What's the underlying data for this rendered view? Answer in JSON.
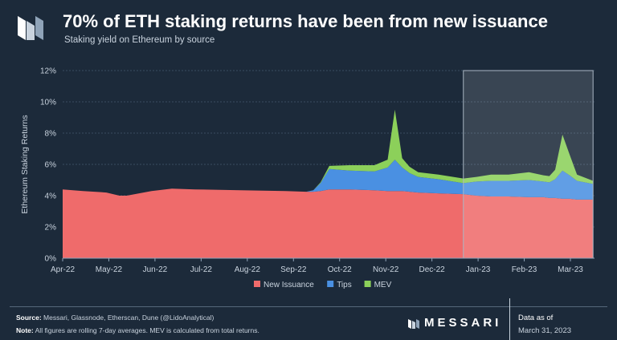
{
  "header": {
    "title": "70% of ETH staking returns have been from new issuance",
    "subtitle": "Staking yield on Ethereum by source"
  },
  "chart_data": {
    "type": "area",
    "stacked": true,
    "title": "70% of ETH staking returns have been from new issuance",
    "subtitle": "Staking yield on Ethereum by source",
    "xlabel": "",
    "ylabel": "Ethereum Staking Returns",
    "ylim": [
      0,
      12
    ],
    "y_ticks": [
      "0%",
      "2%",
      "4%",
      "6%",
      "8%",
      "10%",
      "12%"
    ],
    "x_ticks": [
      "Apr-22",
      "May-22",
      "Jun-22",
      "Jul-22",
      "Aug-22",
      "Sep-22",
      "Oct-22",
      "Nov-22",
      "Dec-22",
      "Jan-23",
      "Feb-23",
      "Mar-23"
    ],
    "grid": true,
    "legend_position": "bottom",
    "highlight_region": [
      "2023-01-01",
      "2023-03-31"
    ],
    "colors": {
      "New Issuance": "#ef6b6b",
      "Tips": "#4a90e2",
      "MEV": "#8cd05a"
    },
    "x": [
      "2022-04-01",
      "2022-04-15",
      "2022-05-01",
      "2022-05-10",
      "2022-05-15",
      "2022-06-01",
      "2022-06-15",
      "2022-07-01",
      "2022-08-01",
      "2022-09-01",
      "2022-09-15",
      "2022-09-20",
      "2022-09-25",
      "2022-10-01",
      "2022-10-15",
      "2022-11-01",
      "2022-11-10",
      "2022-11-15",
      "2022-11-20",
      "2022-11-25",
      "2022-12-01",
      "2022-12-15",
      "2023-01-01",
      "2023-01-10",
      "2023-01-20",
      "2023-02-01",
      "2023-02-15",
      "2023-02-25",
      "2023-03-01",
      "2023-03-05",
      "2023-03-10",
      "2023-03-15",
      "2023-03-20",
      "2023-03-31"
    ],
    "series": [
      {
        "name": "New Issuance",
        "values": [
          4.4,
          4.3,
          4.2,
          4.0,
          4.0,
          4.3,
          4.45,
          4.4,
          4.35,
          4.3,
          4.25,
          4.25,
          4.3,
          4.4,
          4.4,
          4.35,
          4.3,
          4.3,
          4.3,
          4.25,
          4.2,
          4.15,
          4.1,
          4.0,
          3.95,
          3.95,
          3.9,
          3.9,
          3.85,
          3.85,
          3.8,
          3.8,
          3.75,
          3.75
        ]
      },
      {
        "name": "Tips",
        "values": [
          0,
          0,
          0,
          0,
          0,
          0,
          0,
          0,
          0,
          0,
          0,
          0.1,
          0.5,
          1.3,
          1.2,
          1.2,
          1.5,
          2.0,
          1.5,
          1.2,
          1.0,
          0.9,
          0.7,
          0.9,
          1.0,
          1.0,
          1.1,
          1.0,
          1.0,
          1.2,
          1.8,
          1.5,
          1.2,
          1.0
        ]
      },
      {
        "name": "MEV",
        "values": [
          0,
          0,
          0,
          0,
          0,
          0,
          0,
          0,
          0,
          0,
          0,
          0,
          0.05,
          0.2,
          0.35,
          0.4,
          0.5,
          3.2,
          0.6,
          0.4,
          0.3,
          0.3,
          0.3,
          0.3,
          0.4,
          0.4,
          0.5,
          0.4,
          0.4,
          0.6,
          2.3,
          1.3,
          0.4,
          0.2
        ]
      }
    ]
  },
  "footer": {
    "source_label": "Source:",
    "source_text": "Messari, Glassnode, Etherscan, Dune (@LidoAnalytical)",
    "note_label": "Note:",
    "note_text": "All figures are rolling 7-day averages. MEV is calculated from total returns.",
    "brand": "MESSARI",
    "data_as_of_label": "Data as of",
    "data_as_of_date": "March 31, 2023"
  }
}
